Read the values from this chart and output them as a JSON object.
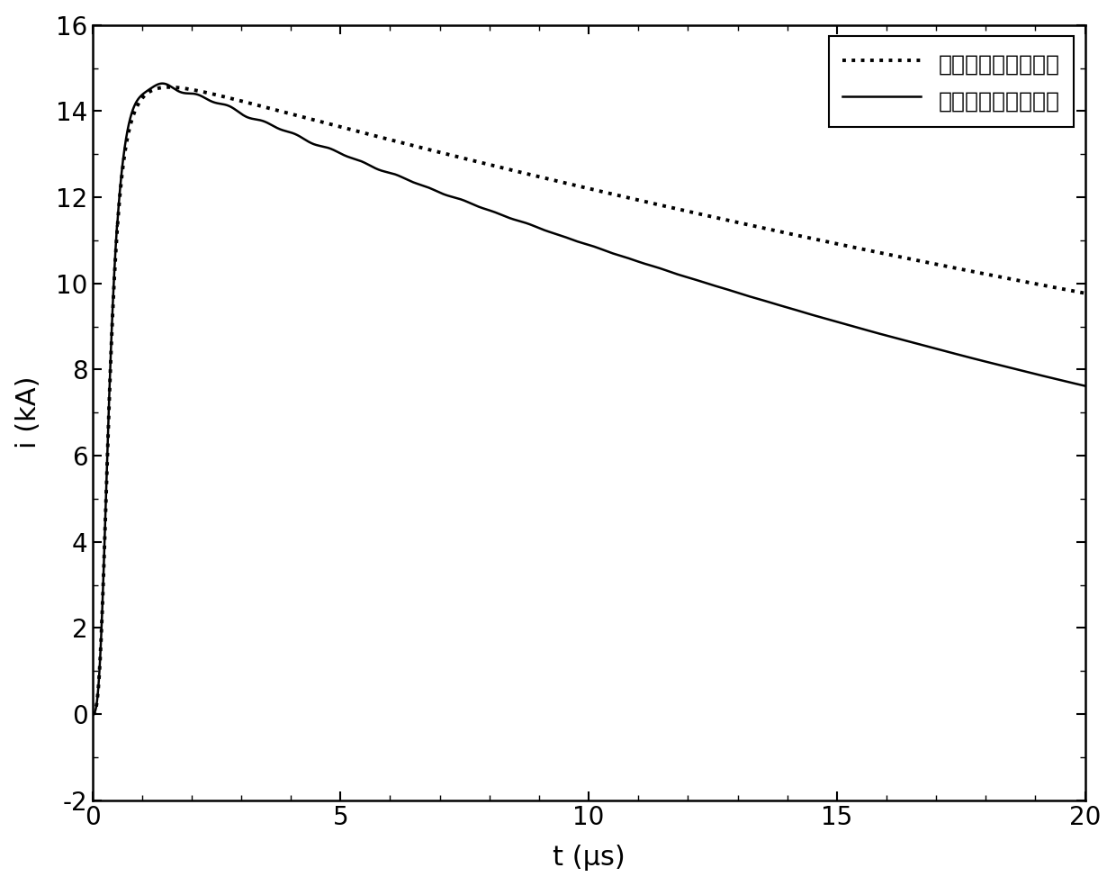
{
  "title": "",
  "xlabel": "t (μs)",
  "ylabel": "i (kA)",
  "xlim": [
    0,
    20
  ],
  "ylim": [
    -2,
    16
  ],
  "xticks": [
    0,
    5,
    10,
    15,
    20
  ],
  "yticks": [
    -2,
    0,
    2,
    4,
    6,
    8,
    10,
    12,
    14,
    16
  ],
  "legend_calculated": "计算得到的基底电流",
  "legend_measured": "实测得到的基底电流",
  "line_color": "#000000",
  "background_color": "#ffffff",
  "peak_value": 14.4,
  "tau1_rise": 0.35,
  "n_heidler": 3,
  "tau2_calc": 45.0,
  "tau2_meas": 28.0,
  "figsize": [
    12.4,
    9.84
  ],
  "dpi": 100,
  "dotted_lw": 2.8,
  "solid_lw": 1.8
}
